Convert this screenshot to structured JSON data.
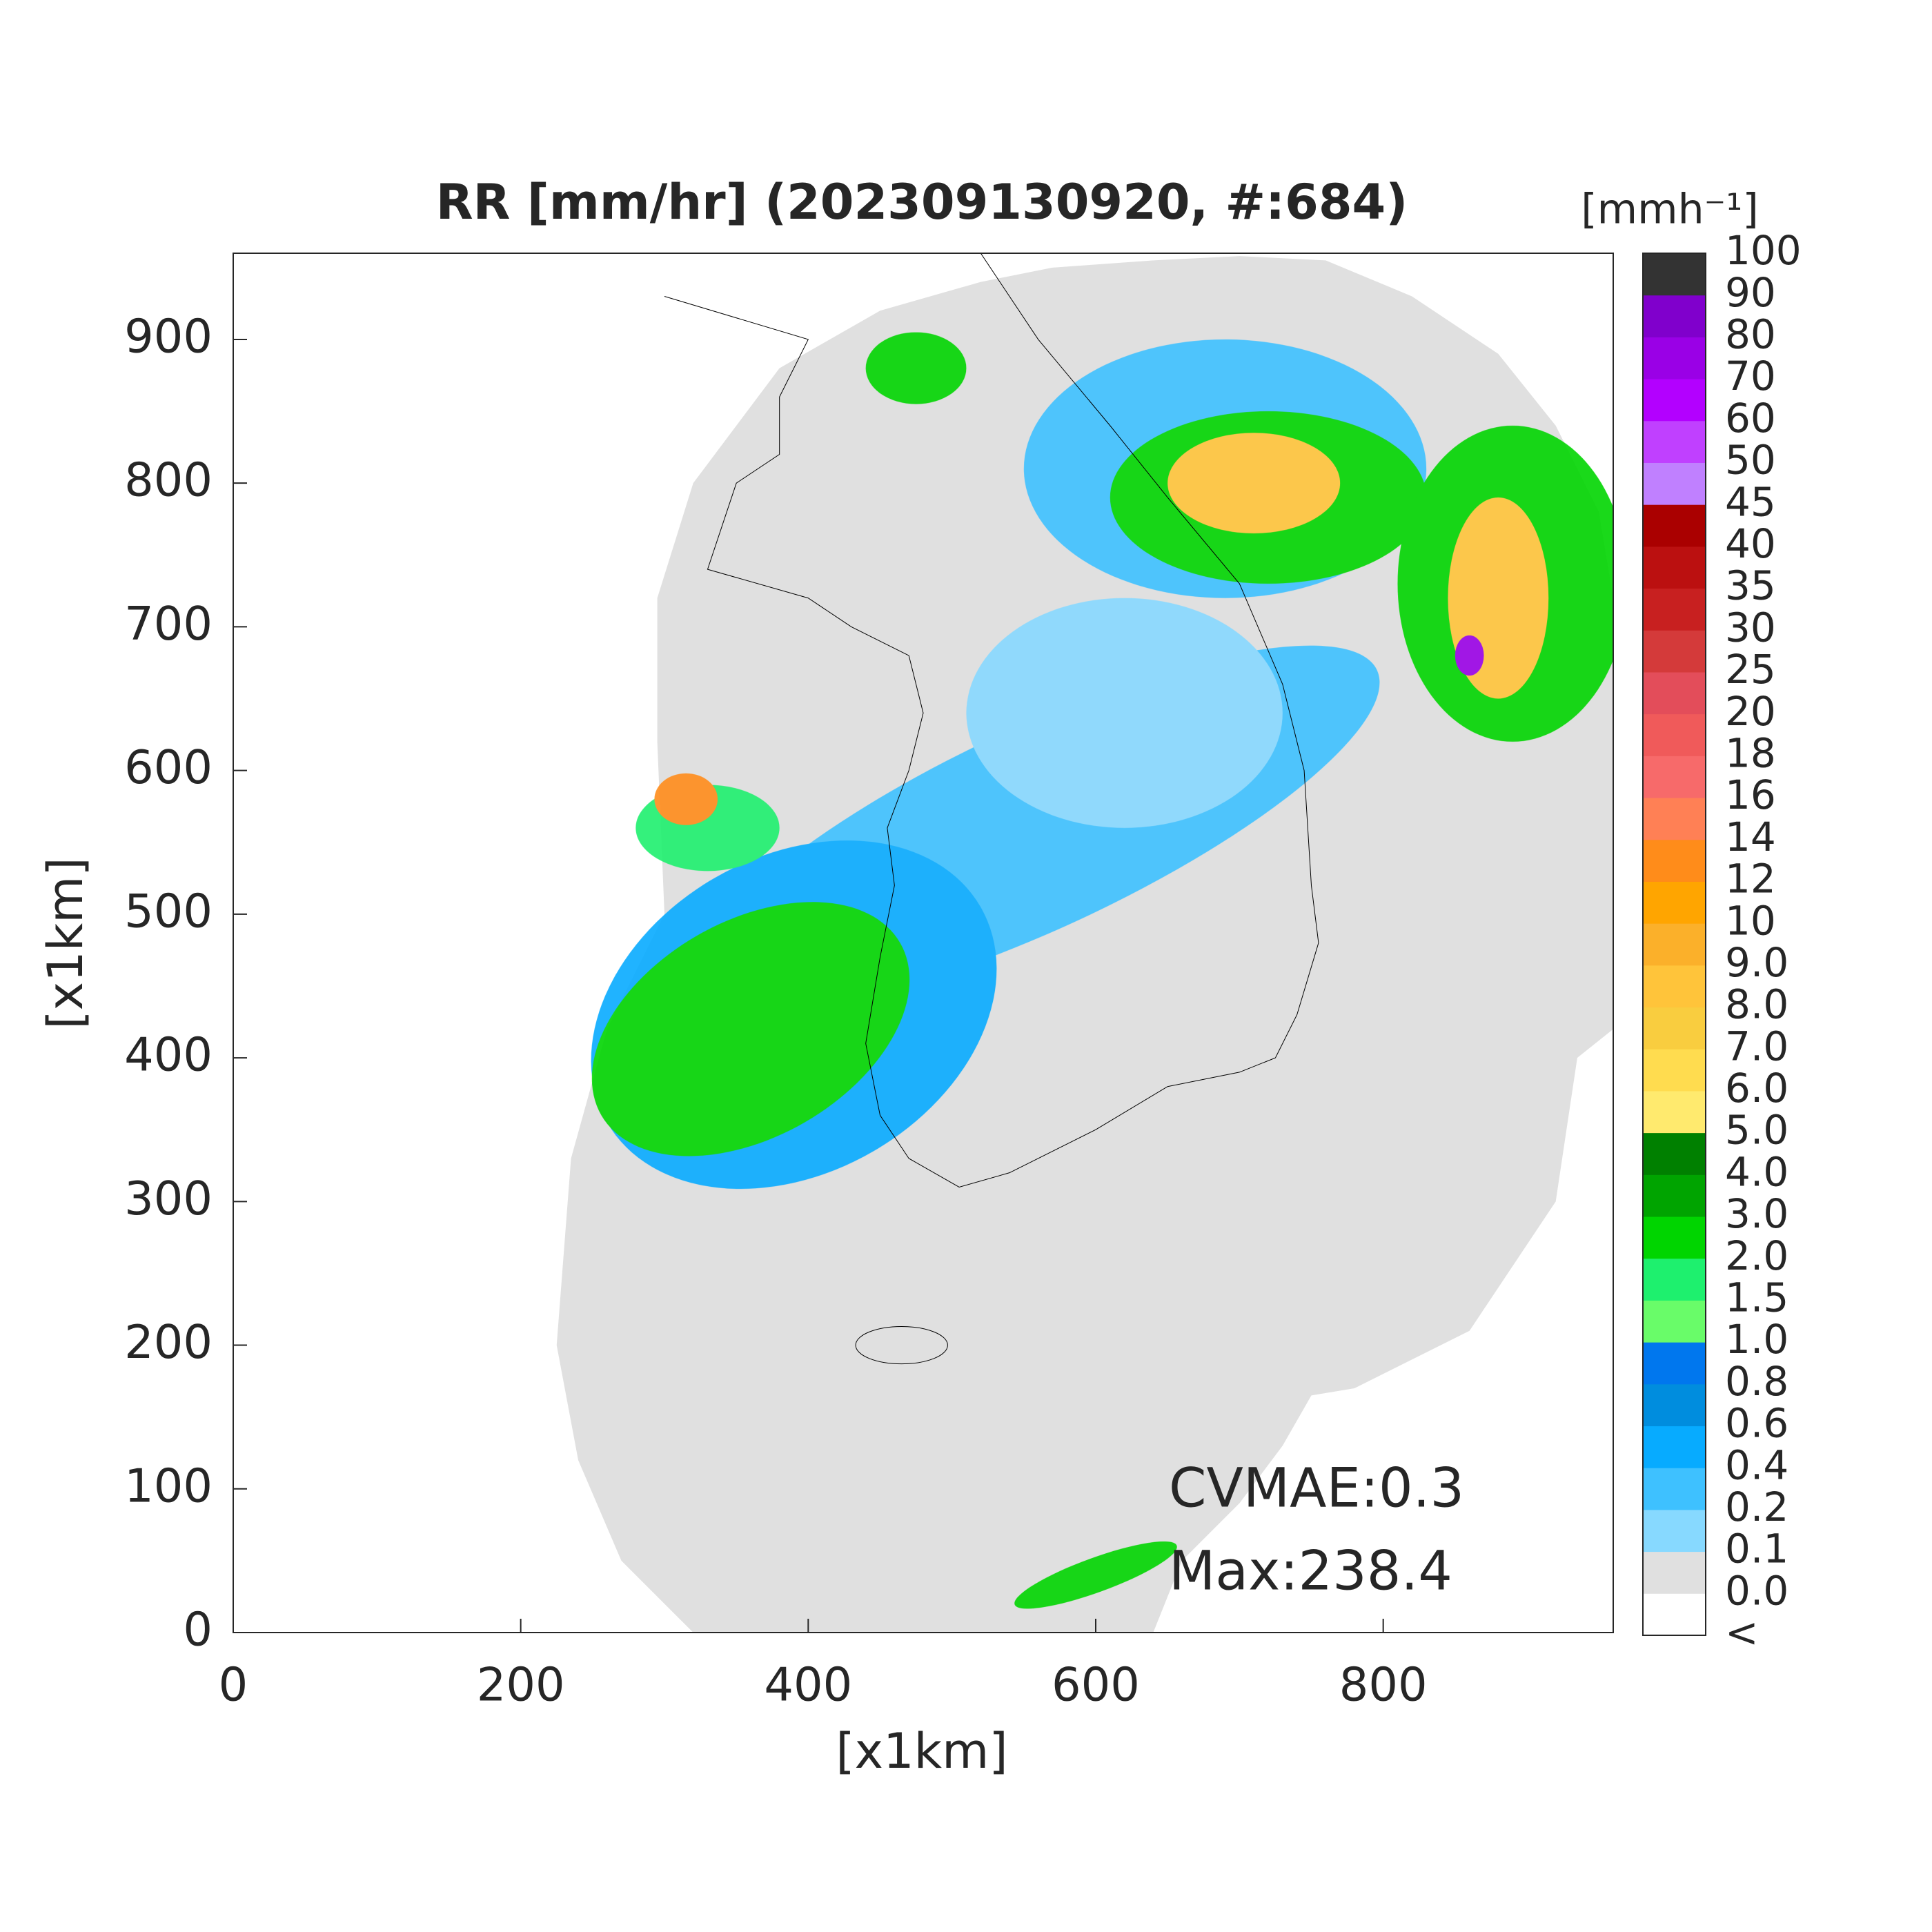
{
  "chart_data": {
    "type": "radar-map",
    "title": "RR [mm/hr] (202309130920, #:684)",
    "x_label": "[x1km]",
    "y_label": "[x1km]",
    "xlim": [
      0,
      960
    ],
    "ylim": [
      0,
      960
    ],
    "xticks": [
      0,
      200,
      400,
      600,
      800
    ],
    "yticks": [
      0,
      100,
      200,
      300,
      400,
      500,
      600,
      700,
      800,
      900
    ],
    "annotations": [
      "CVMAE:0.3",
      "Max:238.4"
    ],
    "colorbar": {
      "label": "[mmh⁻¹]",
      "labels": [
        "<",
        "0.0",
        "0.1",
        "0.2",
        "0.4",
        "0.6",
        "0.8",
        "1.0",
        "1.5",
        "2.0",
        "3.0",
        "4.0",
        "5.0",
        "6.0",
        "7.0",
        "8.0",
        "9.0",
        "10",
        "12",
        "14",
        "16",
        "18",
        "20",
        "25",
        "30",
        "35",
        "40",
        "45",
        "50",
        "60",
        "70",
        "80",
        "90",
        "100"
      ],
      "colors": [
        "#ffffff",
        "#e0e0e0",
        "#87d9ff",
        "#3ec1ff",
        "#07abff",
        "#008dde",
        "#0077ee",
        "#69fc69",
        "#1ef06e",
        "#00d500",
        "#00a400",
        "#008000",
        "#ffea6e",
        "#ffdc4f",
        "#f9cd3f",
        "#ffc43a",
        "#fbb02a",
        "#ffa500",
        "#ff8c1a",
        "#ff8055",
        "#f76a6a",
        "#f05a5a",
        "#e34d5a",
        "#d43a3a",
        "#c82020",
        "#bb1010",
        "#aa0000",
        "#c080ff",
        "#c040ff",
        "#b300ff",
        "#9a00e6",
        "#8000cc",
        "#333333"
      ]
    }
  }
}
